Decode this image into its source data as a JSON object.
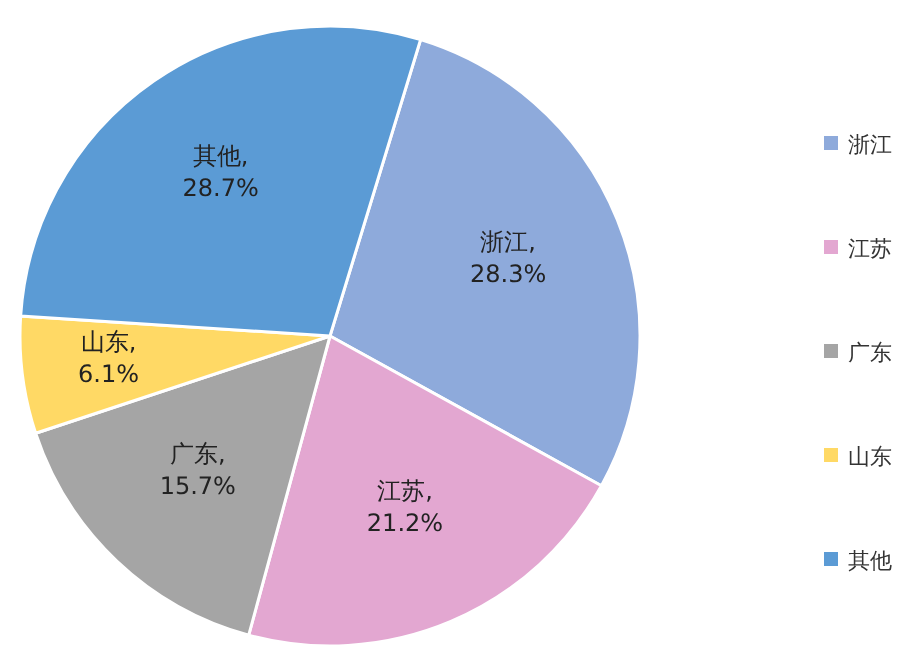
{
  "chart_data": {
    "type": "pie",
    "categories": [
      "浙江",
      "江苏",
      "广东",
      "山东",
      "其他"
    ],
    "values": [
      28.3,
      21.2,
      15.7,
      6.1,
      28.7
    ],
    "colors": [
      "#8eaadb",
      "#e3a7d1",
      "#a5a5a5",
      "#ffd965",
      "#5b9bd5"
    ],
    "value_labels": [
      "浙江, 28.3%",
      "江苏, 21.2%",
      "广东, 15.7%",
      "山东, 6.1%",
      "其他, 28.7%"
    ],
    "legend": "right"
  }
}
